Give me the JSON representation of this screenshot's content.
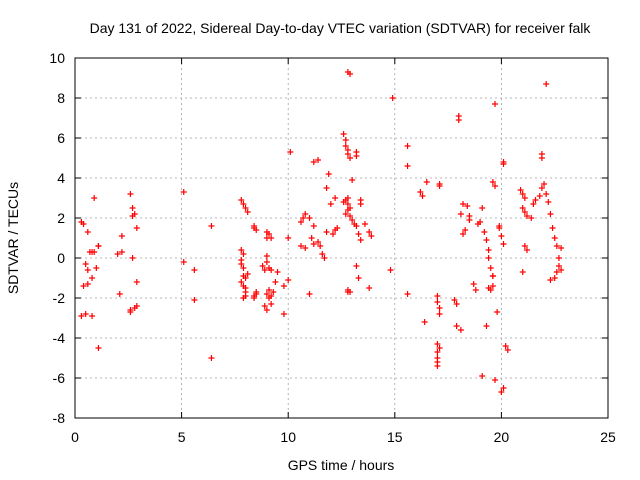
{
  "chart_data": {
    "type": "scatter",
    "title": "Day 131 of 2022, Sidereal Day-to-day VTEC variation (SDTVAR) for receiver falk",
    "xlabel": "GPS time / hours",
    "ylabel": "SDTVAR / TECUs",
    "xlim": [
      0,
      25
    ],
    "ylim": [
      -8,
      10
    ],
    "xticks": [
      0,
      5,
      10,
      15,
      20,
      25
    ],
    "yticks": [
      -8,
      -6,
      -4,
      -2,
      0,
      2,
      4,
      6,
      8,
      10
    ],
    "grid": true,
    "marker": "plus",
    "color": "#ff0000",
    "series": [
      {
        "name": "SDTVAR",
        "x": [
          0.3,
          0.4,
          0.6,
          0.7,
          0.8,
          0.9,
          1.0,
          1.1,
          0.4,
          0.6,
          0.8,
          0.3,
          0.5,
          0.8,
          1.1,
          1.1,
          0.9,
          0.6,
          0.5,
          2.1,
          2.2,
          2.6,
          2.7,
          2.7,
          2.8,
          2.9,
          2.9,
          2.6,
          2.8,
          2.9,
          2.6,
          2.7,
          2.2,
          2.0,
          5.1,
          5.1,
          5.6,
          5.6,
          6.4,
          6.4,
          7.8,
          7.9,
          7.8,
          7.8,
          7.9,
          7.9,
          7.8,
          7.9,
          8.0,
          8.0,
          8.0,
          7.9,
          8.0,
          8.1,
          7.8,
          7.9,
          8.0,
          8.1,
          8.4,
          8.4,
          8.5,
          8.5,
          8.4,
          8.4,
          8.5,
          8.8,
          8.9,
          9.0,
          9.0,
          9.1,
          9.2,
          9.0,
          9.1,
          9.0,
          9.2,
          9.1,
          9.0,
          9.2,
          9.3,
          9.4,
          9.5,
          9.1,
          9.2,
          8.9,
          9.0,
          9.8,
          10.0,
          10.1,
          10.0,
          9.8,
          10.6,
          10.8,
          11.1,
          11.2,
          11.4,
          11.5,
          11.6,
          11.7,
          11.8,
          12.1,
          12.2,
          12.3,
          11.8,
          11.4,
          11.2,
          10.8,
          10.7,
          10.6,
          11.0,
          11.2,
          11.9,
          12.2,
          12.0,
          11.0,
          12.6,
          12.7,
          12.7,
          12.8,
          12.8,
          12.9,
          12.8,
          12.7,
          12.6,
          12.8,
          12.9,
          12.8,
          12.7,
          12.9,
          13.0,
          13.1,
          13.2,
          13.3,
          13.4,
          13.6,
          13.8,
          13.9,
          12.8,
          12.9,
          13.2,
          13.2,
          13.0,
          12.8,
          13.4,
          13.4,
          13.2,
          13.3,
          12.8,
          12.9,
          13.8,
          14.9,
          14.8,
          15.6,
          15.6,
          15.6,
          16.2,
          16.3,
          16.5,
          16.4,
          17.0,
          17.0,
          17.1,
          17.1,
          17.0,
          17.1,
          17.0,
          17.0,
          17.0,
          17.0,
          17.1,
          17.1,
          17.8,
          17.9,
          17.9,
          18.1,
          18.2,
          18.1,
          18.4,
          18.5,
          18.5,
          18.3,
          18.2,
          18.0,
          18.0,
          18.7,
          18.8,
          18.9,
          19.0,
          19.1,
          19.2,
          19.3,
          19.4,
          19.4,
          19.5,
          19.6,
          19.8,
          19.6,
          19.5,
          19.4,
          19.6,
          19.7,
          19.9,
          19.9,
          20.0,
          20.1,
          20.1,
          20.1,
          20.2,
          20.3,
          20.1,
          20.0,
          19.7,
          19.3,
          19.6,
          19.7,
          19.1,
          20.9,
          21.0,
          21.1,
          21.0,
          21.1,
          21.2,
          21.4,
          21.5,
          21.6,
          21.8,
          21.9,
          22.0,
          22.1,
          22.2,
          22.3,
          22.4,
          22.5,
          22.6,
          22.7,
          22.8,
          22.6,
          22.5,
          22.8,
          21.9,
          21.9,
          22.1,
          21.1,
          21.2,
          22.7,
          21.0,
          22.3
        ],
        "y": [
          1.8,
          1.7,
          1.3,
          0.3,
          0.3,
          0.3,
          -0.5,
          0.6,
          -1.4,
          -1.3,
          -1.0,
          -2.9,
          -2.8,
          -2.9,
          -4.5,
          0.6,
          3.0,
          -0.6,
          -0.3,
          -1.8,
          1.1,
          3.2,
          2.5,
          2.1,
          2.2,
          1.5,
          -1.2,
          -2.7,
          -2.5,
          -2.4,
          -2.6,
          0.0,
          0.3,
          0.2,
          3.3,
          -0.2,
          -0.6,
          -2.1,
          -5.0,
          1.6,
          0.4,
          0.2,
          -0.1,
          -0.3,
          -0.5,
          -0.9,
          -1.2,
          -1.4,
          -1.5,
          -1.7,
          -1.9,
          -2.0,
          -1.0,
          -0.8,
          2.9,
          2.7,
          2.5,
          2.3,
          1.6,
          1.5,
          1.4,
          -1.7,
          -1.9,
          -2.0,
          -1.8,
          -0.4,
          -0.6,
          -0.2,
          0.1,
          -0.5,
          -0.6,
          1.0,
          1.2,
          1.3,
          1.0,
          -1.6,
          -1.8,
          -1.9,
          -1.7,
          -1.2,
          -0.7,
          -2.0,
          -2.3,
          -2.4,
          -2.6,
          -2.8,
          1.0,
          5.3,
          -1.1,
          -1.4,
          0.6,
          0.5,
          1.0,
          0.7,
          0.8,
          0.6,
          0.2,
          0.0,
          1.3,
          1.2,
          1.4,
          1.5,
          3.5,
          4.9,
          4.8,
          2.2,
          2.0,
          1.8,
          2.0,
          1.6,
          4.2,
          3.0,
          2.7,
          -1.8,
          6.2,
          5.9,
          5.6,
          5.4,
          5.2,
          5.0,
          3.0,
          2.9,
          2.8,
          2.7,
          2.5,
          2.4,
          2.2,
          2.1,
          1.9,
          1.7,
          1.6,
          1.2,
          0.9,
          1.7,
          1.3,
          1.1,
          9.3,
          9.2,
          5.3,
          5.1,
          3.9,
          -1.7,
          2.9,
          2.7,
          -0.4,
          -1.0,
          -1.6,
          -1.7,
          -1.5,
          8.0,
          -0.6,
          5.6,
          4.6,
          -1.8,
          3.3,
          3.1,
          3.8,
          -3.2,
          -1.9,
          -2.2,
          -2.5,
          -2.8,
          -4.3,
          -4.5,
          -4.7,
          -5.0,
          -5.2,
          -5.4,
          3.7,
          3.6,
          -2.1,
          -2.3,
          -3.4,
          -3.6,
          2.7,
          2.2,
          2.6,
          2.1,
          1.9,
          1.4,
          1.2,
          7.1,
          6.9,
          -1.3,
          -1.6,
          1.7,
          1.8,
          2.5,
          1.3,
          0.9,
          0.4,
          0.0,
          -0.5,
          -0.9,
          -2.7,
          -1.4,
          -1.6,
          -1.5,
          3.8,
          3.6,
          1.6,
          1.5,
          1.1,
          0.7,
          4.8,
          4.7,
          -4.4,
          -4.6,
          -6.5,
          -6.7,
          7.7,
          -3.4,
          -0.9,
          -6.1,
          -5.9,
          3.4,
          3.2,
          3.0,
          2.5,
          2.3,
          2.1,
          2.0,
          2.7,
          2.9,
          3.1,
          3.5,
          3.7,
          3.2,
          2.8,
          2.2,
          1.5,
          1.0,
          0.6,
          0.0,
          -0.6,
          -0.7,
          -1.0,
          0.5,
          5.2,
          5.0,
          8.7,
          0.6,
          0.4,
          -0.4,
          -0.7,
          -1.1
        ]
      }
    ]
  }
}
